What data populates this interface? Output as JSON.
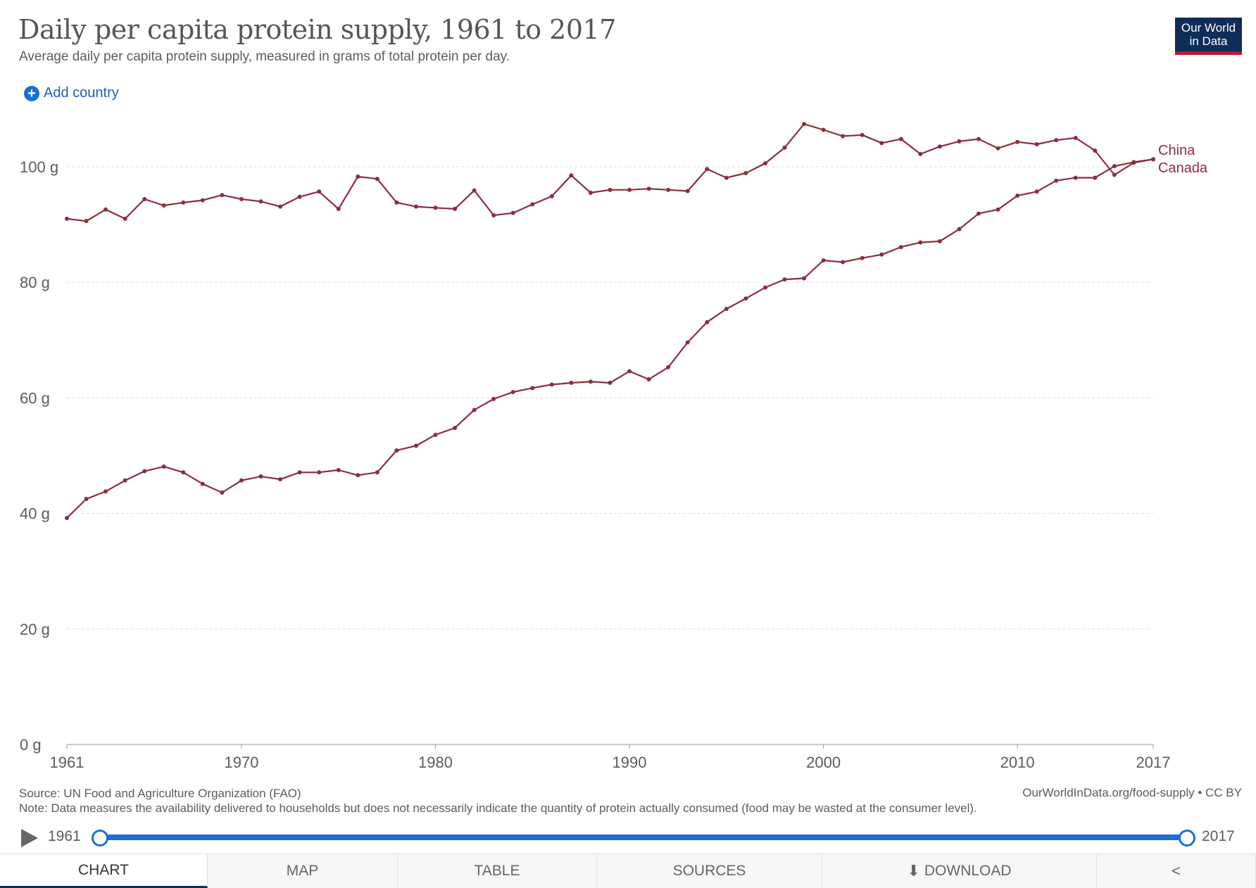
{
  "header": {
    "title": "Daily per capita protein supply, 1961 to 2017",
    "subtitle": "Average daily per capita protein supply, measured in grams of total protein per day.",
    "logo_line1": "Our World",
    "logo_line2": "in Data",
    "add_country_label": "Add country",
    "add_icon": "plus-circle-icon"
  },
  "colors": {
    "series": "#8b2e3c",
    "grid": "#dddddd",
    "accent": "#1a6ed8",
    "logo_bg": "#0f2d59",
    "logo_bar": "#c8102e"
  },
  "chart_data": {
    "type": "line",
    "title": "Daily per capita protein supply, 1961 to 2017",
    "xlabel": "",
    "ylabel": "",
    "xlim": [
      1961,
      2017
    ],
    "ylim": [
      0,
      100
    ],
    "y_ticks": [
      0,
      20,
      40,
      60,
      80,
      100
    ],
    "y_tick_labels": [
      "0 g",
      "20 g",
      "40 g",
      "60 g",
      "80 g",
      "100 g"
    ],
    "x_ticks": [
      1961,
      1970,
      1980,
      1990,
      2000,
      2010,
      2017
    ],
    "x_tick_labels": [
      "1961",
      "1970",
      "1980",
      "1990",
      "2000",
      "2010",
      "2017"
    ],
    "grid": true,
    "legend": "line-end labels, right",
    "x": [
      1961,
      1962,
      1963,
      1964,
      1965,
      1966,
      1967,
      1968,
      1969,
      1970,
      1971,
      1972,
      1973,
      1974,
      1975,
      1976,
      1977,
      1978,
      1979,
      1980,
      1981,
      1982,
      1983,
      1984,
      1985,
      1986,
      1987,
      1988,
      1989,
      1990,
      1991,
      1992,
      1993,
      1994,
      1995,
      1996,
      1997,
      1998,
      1999,
      2000,
      2001,
      2002,
      2003,
      2004,
      2005,
      2006,
      2007,
      2008,
      2009,
      2010,
      2011,
      2012,
      2013,
      2014,
      2015,
      2016,
      2017
    ],
    "series": [
      {
        "name": "Canada",
        "values": [
          91.0,
          90.6,
          92.6,
          91.0,
          94.4,
          93.3,
          93.8,
          94.2,
          95.1,
          94.4,
          94.0,
          93.1,
          94.8,
          95.7,
          92.7,
          98.3,
          97.9,
          93.8,
          93.1,
          92.9,
          92.7,
          95.9,
          91.6,
          92.0,
          93.5,
          94.9,
          98.5,
          95.5,
          96.0,
          96.0,
          96.2,
          96.0,
          95.8,
          99.6,
          98.1,
          98.9,
          100.6,
          103.3,
          107.4,
          106.4,
          105.3,
          105.5,
          104.1,
          104.8,
          102.2,
          103.5,
          104.4,
          104.8,
          103.2,
          104.3,
          103.9,
          104.6,
          105.0,
          102.8,
          98.6,
          100.7,
          101.3
        ]
      },
      {
        "name": "China",
        "values": [
          39.2,
          42.5,
          43.8,
          45.7,
          47.3,
          48.1,
          47.1,
          45.1,
          43.6,
          45.7,
          46.4,
          45.9,
          47.1,
          47.1,
          47.5,
          46.6,
          47.1,
          50.9,
          51.7,
          53.6,
          54.8,
          57.9,
          59.8,
          61.0,
          61.7,
          62.3,
          62.6,
          62.8,
          62.6,
          64.6,
          63.2,
          65.3,
          69.6,
          73.1,
          75.4,
          77.2,
          79.1,
          80.5,
          80.7,
          83.8,
          83.5,
          84.2,
          84.8,
          86.1,
          86.9,
          87.1,
          89.2,
          91.9,
          92.6,
          95.0,
          95.7,
          97.6,
          98.1,
          98.1,
          100.1,
          100.8,
          101.3
        ]
      }
    ]
  },
  "footer": {
    "source": "Source: UN Food and Agriculture Organization (FAO)",
    "note": "Note: Data measures the availability delivered to households but does not necessarily indicate the quantity of protein actually consumed (food may be wasted at the consumer level).",
    "url_license": "OurWorldInData.org/food-supply • CC BY"
  },
  "timeline": {
    "start_label": "1961",
    "end_label": "2017",
    "play_icon": "play-icon"
  },
  "tabs": {
    "chart": "CHART",
    "map": "MAP",
    "table": "TABLE",
    "sources": "SOURCES",
    "download": "DOWNLOAD",
    "download_icon": "download-icon",
    "share_icon": "share-icon"
  }
}
